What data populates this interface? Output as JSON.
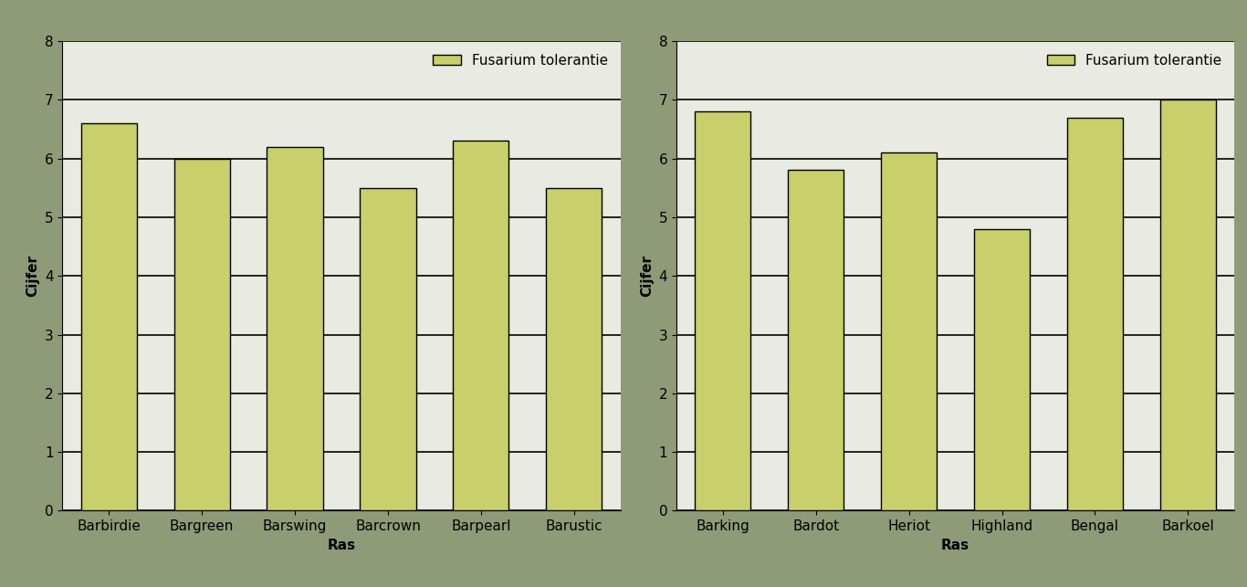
{
  "chart_data": [
    {
      "type": "bar",
      "x_label": "Ras",
      "y_label": "Cijfer",
      "categories": [
        "Barbirdie",
        "Bargreen",
        "Barswing",
        "Barcrown",
        "Barpearl",
        "Barustic"
      ],
      "series": [
        {
          "name": "Fusarium tolerantie",
          "color": "#c9cf6a",
          "values": [
            6.6,
            6.0,
            6.2,
            5.5,
            6.3,
            5.5
          ]
        }
      ],
      "ylim": [
        0,
        8
      ],
      "yticks": [
        0,
        1,
        2,
        3,
        4,
        5,
        6,
        7,
        8
      ],
      "grid": true,
      "legend": "upper right"
    },
    {
      "type": "bar",
      "x_label": "Ras",
      "y_label": "Cijfer",
      "categories": [
        "Barking",
        "Bardot",
        "Heriot",
        "Highland",
        "Bengal",
        "Barkoel"
      ],
      "series": [
        {
          "name": "Fusarium tolerantie",
          "color": "#c9cf6a",
          "values": [
            6.8,
            5.8,
            6.1,
            4.8,
            6.7,
            7.0
          ]
        }
      ],
      "ylim": [
        0,
        8
      ],
      "yticks": [
        0,
        1,
        2,
        3,
        4,
        5,
        6,
        7,
        8
      ],
      "grid": true,
      "legend": "upper right"
    }
  ]
}
